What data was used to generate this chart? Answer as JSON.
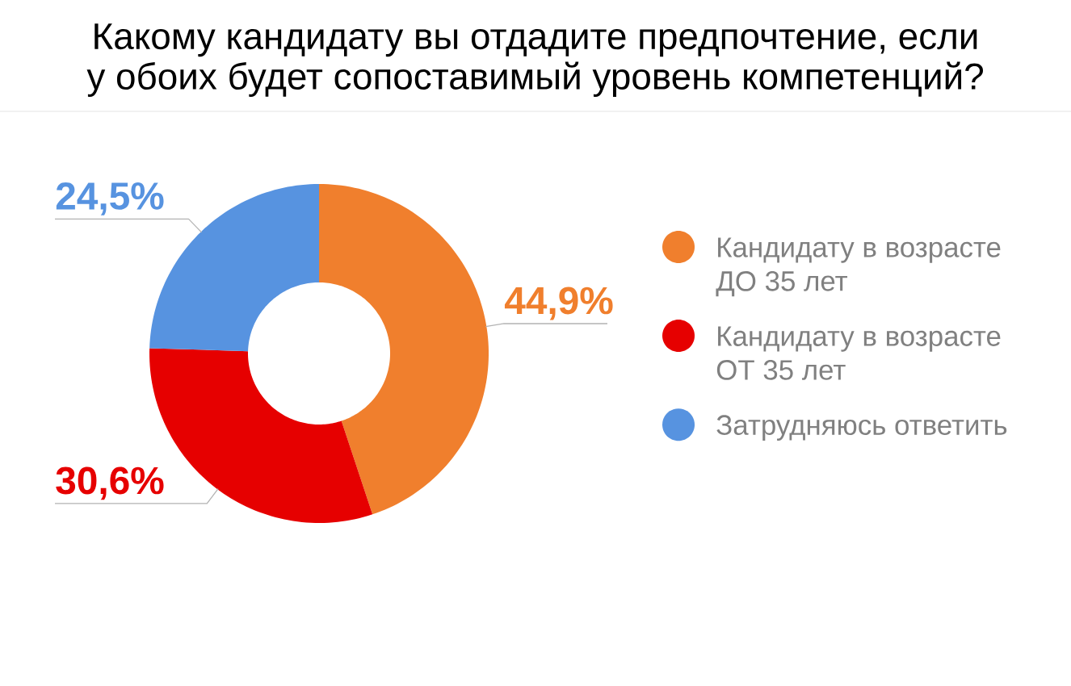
{
  "chart_data": {
    "type": "donut",
    "title": "Какому кандидату вы отдадите предпочтение, если у обоих будет сопоставимый уровень компетенций?",
    "categories": [
      "Кандидату в возрасте ДО 35 лет",
      "Кандидату в возрасте ОТ 35 лет",
      "Затрудняюсь ответить"
    ],
    "values": [
      44.9,
      30.6,
      24.5
    ],
    "colors": [
      "#f07f2d",
      "#e60000",
      "#5793e0"
    ],
    "value_labels": [
      "44,9%",
      "30,6%",
      "24,5%"
    ],
    "legend": "right"
  }
}
